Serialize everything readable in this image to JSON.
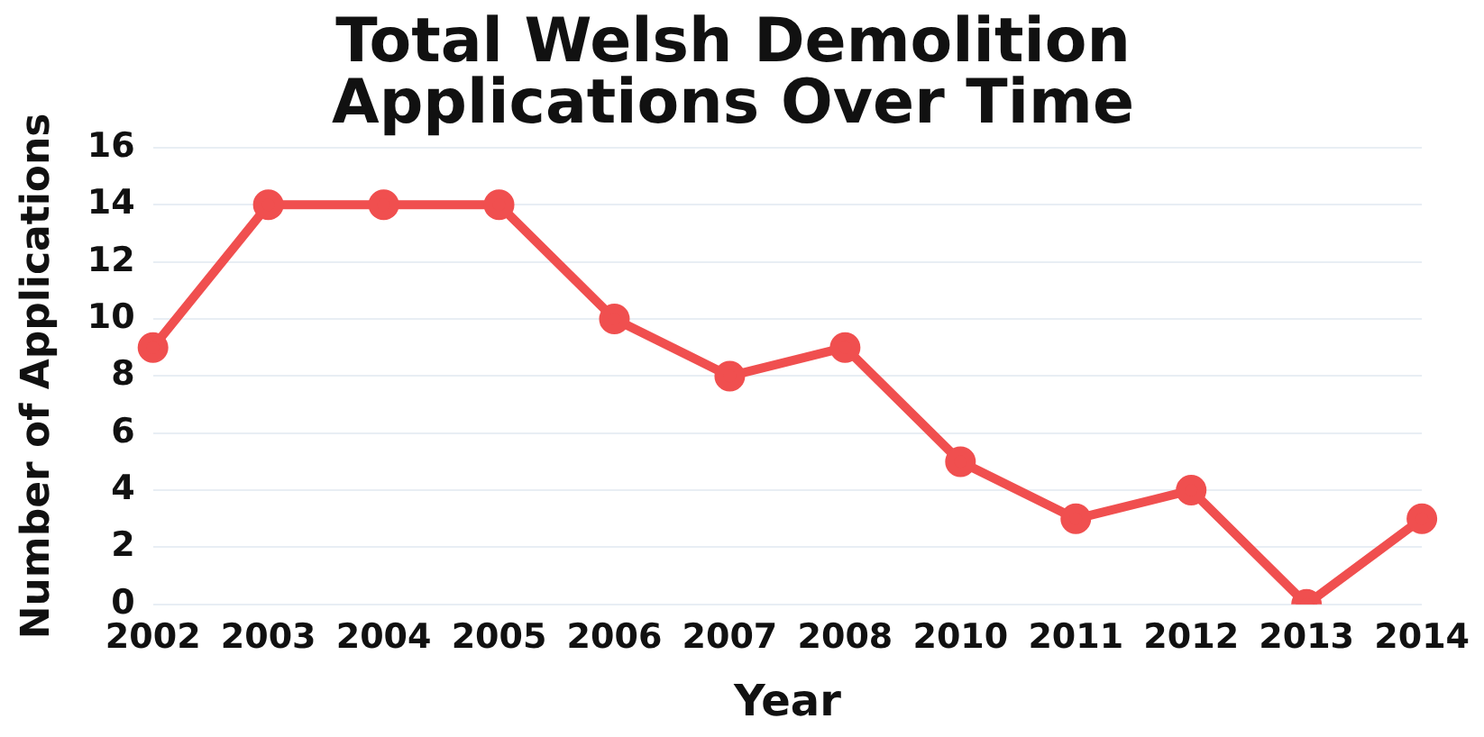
{
  "chart_data": {
    "type": "line",
    "title": "Total Welsh Demolition Applications Over Time",
    "xlabel": "Year",
    "ylabel": "Number of Applications",
    "categories": [
      "2002",
      "2003",
      "2004",
      "2005",
      "2006",
      "2007",
      "2008",
      "2010",
      "2011",
      "2012",
      "2013",
      "2014"
    ],
    "series": [
      {
        "color": "#f04f4f",
        "values": [
          9,
          14,
          14,
          14,
          10,
          8,
          9,
          5,
          3,
          4,
          0,
          3
        ]
      }
    ],
    "ylim": [
      0,
      16
    ],
    "yticks": [
      0,
      2,
      4,
      6,
      8,
      10,
      12,
      14,
      16
    ],
    "grid": "y",
    "legend": false,
    "marker": "circle",
    "line_style": "solid"
  }
}
